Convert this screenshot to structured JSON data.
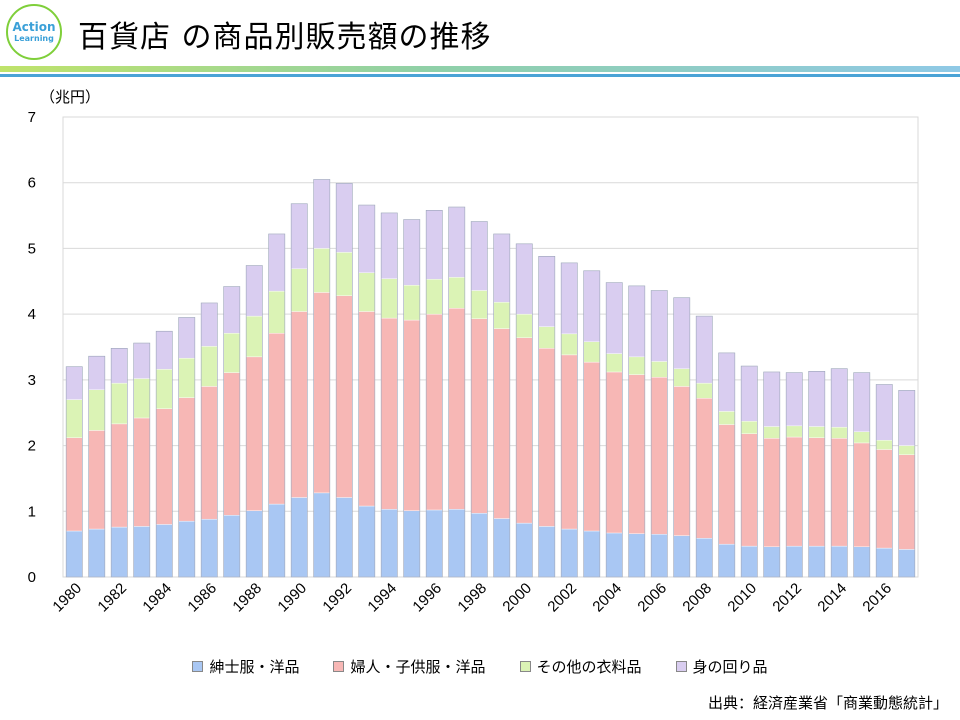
{
  "header": {
    "logo": {
      "line1": "Action",
      "line2": "Learning"
    },
    "title": "百貨店 の商品別販売額の推移"
  },
  "colors": {
    "mens": "#a9c7f3",
    "womens": "#f7b7b5",
    "other_clothing": "#dbf3b5",
    "accessories": "#d9cdf0",
    "grid": "#d9d9d9"
  },
  "chart_data": {
    "type": "bar",
    "stacked": true,
    "title": "百貨店 の商品別販売額の推移",
    "ylabel": "（兆円）",
    "xlabel": "",
    "ylim": [
      0,
      7
    ],
    "yticks": [
      "0",
      "1",
      "2",
      "3",
      "4",
      "5",
      "6",
      "7"
    ],
    "grid": true,
    "legend_position": "bottom",
    "categories": [
      "1980",
      "1981",
      "1982",
      "1983",
      "1984",
      "1985",
      "1986",
      "1987",
      "1988",
      "1989",
      "1990",
      "1991",
      "1992",
      "1993",
      "1994",
      "1995",
      "1996",
      "1997",
      "1998",
      "1999",
      "2000",
      "2001",
      "2002",
      "2003",
      "2004",
      "2005",
      "2006",
      "2007",
      "2008",
      "2009",
      "2010",
      "2011",
      "2012",
      "2013",
      "2014",
      "2015",
      "2016",
      "2017"
    ],
    "xtick_labels": [
      "1980",
      "1982",
      "1984",
      "1986",
      "1988",
      "1990",
      "1992",
      "1994",
      "1996",
      "1998",
      "2000",
      "2002",
      "2004",
      "2006",
      "2008",
      "2010",
      "2012",
      "2014",
      "2016"
    ],
    "series": [
      {
        "name": "紳士服・洋品",
        "color_key": "mens",
        "values": [
          0.7,
          0.73,
          0.76,
          0.77,
          0.8,
          0.85,
          0.88,
          0.94,
          1.01,
          1.11,
          1.21,
          1.28,
          1.21,
          1.08,
          1.03,
          1.01,
          1.02,
          1.03,
          0.97,
          0.89,
          0.82,
          0.77,
          0.73,
          0.7,
          0.67,
          0.66,
          0.65,
          0.63,
          0.59,
          0.5,
          0.47,
          0.46,
          0.47,
          0.47,
          0.47,
          0.46,
          0.44,
          0.42
        ]
      },
      {
        "name": "婦人・子供服・洋品",
        "color_key": "womens",
        "values": [
          1.42,
          1.5,
          1.57,
          1.65,
          1.76,
          1.88,
          2.02,
          2.17,
          2.34,
          2.6,
          2.83,
          3.05,
          3.07,
          2.96,
          2.91,
          2.9,
          2.98,
          3.06,
          2.96,
          2.89,
          2.82,
          2.71,
          2.65,
          2.57,
          2.45,
          2.42,
          2.39,
          2.27,
          2.13,
          1.82,
          1.71,
          1.65,
          1.66,
          1.65,
          1.64,
          1.58,
          1.5,
          1.44
        ]
      },
      {
        "name": "その他の衣料品",
        "color_key": "other_clothing",
        "values": [
          0.58,
          0.62,
          0.62,
          0.6,
          0.6,
          0.6,
          0.61,
          0.6,
          0.62,
          0.64,
          0.65,
          0.67,
          0.66,
          0.59,
          0.6,
          0.53,
          0.53,
          0.47,
          0.43,
          0.4,
          0.36,
          0.33,
          0.32,
          0.31,
          0.28,
          0.27,
          0.24,
          0.27,
          0.23,
          0.2,
          0.19,
          0.18,
          0.17,
          0.17,
          0.17,
          0.17,
          0.14,
          0.14
        ]
      },
      {
        "name": "身の回り品",
        "color_key": "accessories",
        "values": [
          0.5,
          0.51,
          0.53,
          0.54,
          0.58,
          0.62,
          0.66,
          0.71,
          0.77,
          0.87,
          0.99,
          1.05,
          1.05,
          1.03,
          1.0,
          1.0,
          1.05,
          1.07,
          1.05,
          1.04,
          1.07,
          1.07,
          1.08,
          1.08,
          1.08,
          1.08,
          1.08,
          1.08,
          1.02,
          0.89,
          0.84,
          0.83,
          0.81,
          0.84,
          0.89,
          0.9,
          0.85,
          0.84
        ]
      }
    ]
  },
  "legend": [
    "紳士服・洋品",
    "婦人・子供服・洋品",
    "その他の衣料品",
    "身の回り品"
  ],
  "source": "出典：経済産業省「商業動態統計」"
}
